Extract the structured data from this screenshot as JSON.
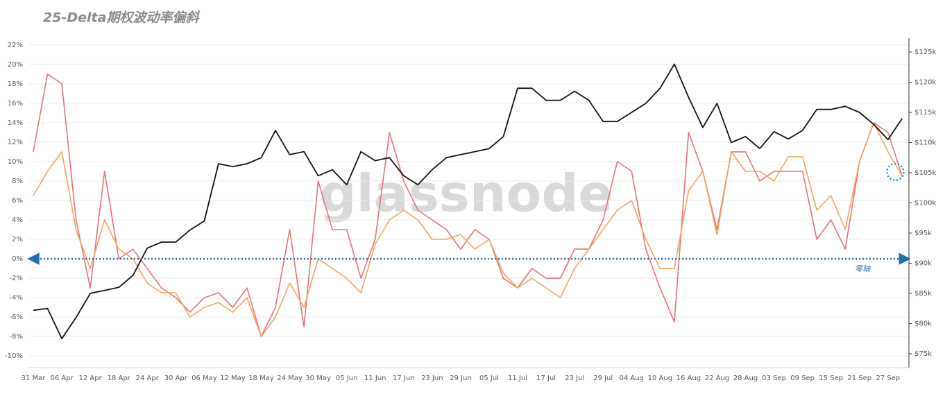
{
  "chart_data": {
    "type": "line",
    "title": "25-Delta期权波动率偏斜",
    "watermark": "glassnode",
    "annotation": "零轴",
    "categories": [
      "31 Mar",
      null,
      "06 Apr",
      null,
      "12 Apr",
      null,
      "18 Apr",
      null,
      "24 Apr",
      null,
      "30 Apr",
      null,
      "06 May",
      null,
      "12 May",
      null,
      "18 May",
      null,
      "24 May",
      null,
      "30 May",
      null,
      "05 Jun",
      null,
      "11 Jun",
      null,
      "17 Jun",
      null,
      "23 Jun",
      null,
      "29 Jun",
      null,
      "05 Jul",
      null,
      "11 Jul",
      null,
      "17 Jul",
      null,
      "23 Jul",
      null,
      "29 Jul",
      null,
      "04 Aug",
      null,
      "10 Aug",
      null,
      "16 Aug",
      null,
      "22 Aug",
      null,
      "28 Aug",
      null,
      "03 Sep",
      null,
      "09 Sep",
      null,
      "15 Sep",
      null,
      "21 Sep",
      null,
      "27 Sep",
      null
    ],
    "series": [
      {
        "color": "#e8707a",
        "values": [
          11,
          19,
          18,
          4,
          -3,
          9,
          0,
          1,
          -1,
          -3,
          -4,
          -5.5,
          -4,
          -3.5,
          -5,
          -3,
          -8,
          -5,
          3,
          -7,
          8,
          3,
          3,
          -2,
          2,
          13,
          8,
          5,
          4,
          3,
          1,
          3,
          2,
          -2,
          -3,
          -1,
          -2,
          -2,
          1,
          1,
          4,
          10,
          9,
          1,
          -3,
          -6.5,
          13,
          9,
          3,
          11,
          11,
          8,
          9,
          9,
          9,
          2,
          4,
          1,
          10,
          14,
          13,
          8.5
        ]
      },
      {
        "color": "#f5a35a",
        "values": [
          6.5,
          9,
          11,
          3,
          -1,
          4,
          1,
          0,
          -2.5,
          -3.5,
          -3.5,
          -6,
          -5,
          -4.5,
          -5.5,
          -4,
          -8,
          -6,
          -2.5,
          -5,
          0,
          -1,
          -2,
          -3.5,
          1.5,
          4,
          5,
          4,
          2,
          2,
          2.5,
          1,
          2,
          -1.5,
          -3,
          -2,
          -3,
          -4,
          -1,
          1,
          3,
          5,
          6,
          2,
          -1,
          -1,
          7,
          9,
          2.5,
          11,
          9,
          9,
          8,
          10.5,
          10.5,
          5,
          6.5,
          3,
          10,
          14,
          11,
          8.5
        ]
      },
      {
        "color": "#111111",
        "axis": "y2",
        "values": [
          82200,
          82500,
          77500,
          81000,
          85000,
          85500,
          86000,
          88000,
          92500,
          93500,
          93500,
          95500,
          97000,
          106500,
          106000,
          106500,
          107500,
          112000,
          108000,
          108500,
          104500,
          105500,
          103000,
          108500,
          107000,
          107500,
          104500,
          103000,
          105500,
          107500,
          108000,
          108500,
          109000,
          111000,
          119000,
          119000,
          117000,
          117000,
          118500,
          117000,
          113500,
          113500,
          115000,
          116500,
          119000,
          123000,
          117500,
          112500,
          116500,
          110000,
          111000,
          109000,
          111800,
          110600,
          112000,
          115500,
          115500,
          116000,
          115000,
          113000,
          110500,
          114000
        ]
      }
    ],
    "ylim": [
      -11.2,
      22.7
    ],
    "yticks": [
      {
        "value": -10,
        "label": "-10%"
      },
      {
        "value": -8,
        "label": "-8%"
      },
      {
        "value": -6,
        "label": "-6%"
      },
      {
        "value": -4,
        "label": "-4%"
      },
      {
        "value": -2,
        "label": "-2%"
      },
      {
        "value": 0,
        "label": "0%"
      },
      {
        "value": 2,
        "label": "2%"
      },
      {
        "value": 4,
        "label": "4%"
      },
      {
        "value": 6,
        "label": "6%"
      },
      {
        "value": 8,
        "label": "8%"
      },
      {
        "value": 10,
        "label": "10%"
      },
      {
        "value": 12,
        "label": "12%"
      },
      {
        "value": 14,
        "label": "14%"
      },
      {
        "value": 16,
        "label": "16%"
      },
      {
        "value": 18,
        "label": "18%"
      },
      {
        "value": 20,
        "label": "20%"
      },
      {
        "value": 22,
        "label": "22%"
      }
    ],
    "y2lim": [
      72700,
      127300
    ],
    "y2ticks": [
      {
        "value": 75000,
        "label": "$75k"
      },
      {
        "value": 80000,
        "label": "$80k"
      },
      {
        "value": 85000,
        "label": "$85k"
      },
      {
        "value": 90000,
        "label": "$90k"
      },
      {
        "value": 95000,
        "label": "$95k"
      },
      {
        "value": 100000,
        "label": "$100k"
      },
      {
        "value": 105000,
        "label": "$105k"
      },
      {
        "value": 110000,
        "label": "$110k"
      },
      {
        "value": 115000,
        "label": "$115k"
      },
      {
        "value": 120000,
        "label": "$120k"
      },
      {
        "value": 125000,
        "label": "$125k"
      }
    ],
    "grid": true
  }
}
